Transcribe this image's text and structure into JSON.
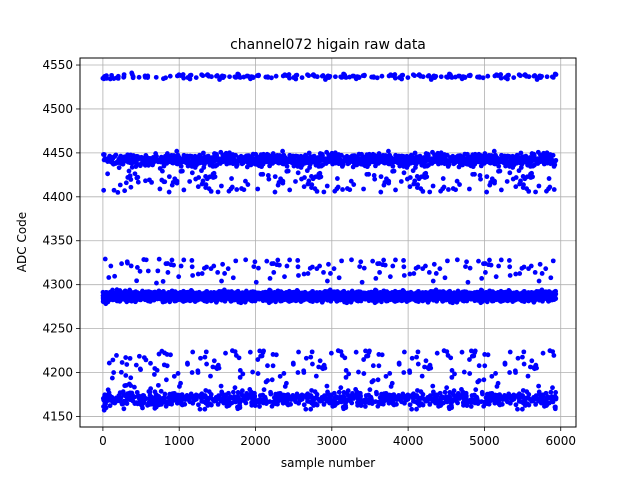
{
  "chart_data": {
    "type": "scatter",
    "title": "channel072 higain raw data",
    "xlabel": "sample number",
    "ylabel": "ADC Code",
    "xlim": [
      -300,
      6200
    ],
    "ylim": [
      4138,
      4558
    ],
    "xticks": [
      0,
      1000,
      2000,
      3000,
      4000,
      5000,
      6000
    ],
    "yticks": [
      4150,
      4200,
      4250,
      4300,
      4350,
      4400,
      4450,
      4500,
      4550
    ],
    "grid": true,
    "marker_color": "#0000ff",
    "sample_count": 5940,
    "clusters": [
      {
        "center": 4287,
        "spread": 5,
        "fraction": 0.52,
        "outlier_fraction": 0.04,
        "outlier_range": [
          4300,
          4330
        ]
      },
      {
        "center": 4442,
        "spread": 6,
        "fraction": 0.25,
        "outlier_fraction": 0.1,
        "outlier_range": [
          4405,
          4430
        ]
      },
      {
        "center": 4170,
        "spread": 8,
        "fraction": 0.2,
        "outlier_fraction": 0.18,
        "outlier_range": [
          4180,
          4225
        ]
      },
      {
        "center": 4537,
        "spread": 3,
        "fraction": 0.03,
        "outlier_fraction": 0.0,
        "outlier_range": [
          4528,
          4545
        ]
      }
    ]
  }
}
